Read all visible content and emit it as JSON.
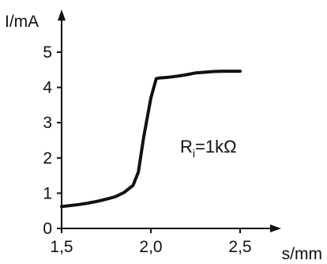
{
  "chart_data": {
    "type": "line",
    "title": "",
    "xlabel": "s/mm",
    "ylabel": "I/mA",
    "xlim": [
      1.5,
      2.5
    ],
    "ylim": [
      0,
      5
    ],
    "x_ticks": [
      1.5,
      2.0,
      2.5
    ],
    "x_tick_labels": [
      "1,5",
      "2,0",
      "2,5"
    ],
    "y_ticks": [
      0,
      1,
      2,
      3,
      4,
      5
    ],
    "y_tick_labels": [
      "0",
      "1",
      "2",
      "3",
      "4",
      "5"
    ],
    "grid": false,
    "annotation": {
      "main": "R",
      "subscript": "i",
      "rest": "=1kΩ"
    },
    "series": [
      {
        "x": [
          1.5,
          1.55,
          1.6,
          1.65,
          1.7,
          1.75,
          1.8,
          1.85,
          1.9,
          1.93,
          1.96,
          2.0,
          2.03,
          2.05,
          2.1,
          2.15,
          2.2,
          2.25,
          2.3,
          2.35,
          2.4,
          2.45,
          2.5
        ],
        "y": [
          0.62,
          0.65,
          0.68,
          0.72,
          0.77,
          0.83,
          0.9,
          1.02,
          1.22,
          1.6,
          2.6,
          3.7,
          4.25,
          4.27,
          4.29,
          4.32,
          4.36,
          4.41,
          4.43,
          4.45,
          4.46,
          4.46,
          4.46
        ]
      }
    ],
    "colors": {
      "line": "#111111",
      "axis": "#111111",
      "text": "#111111"
    }
  }
}
